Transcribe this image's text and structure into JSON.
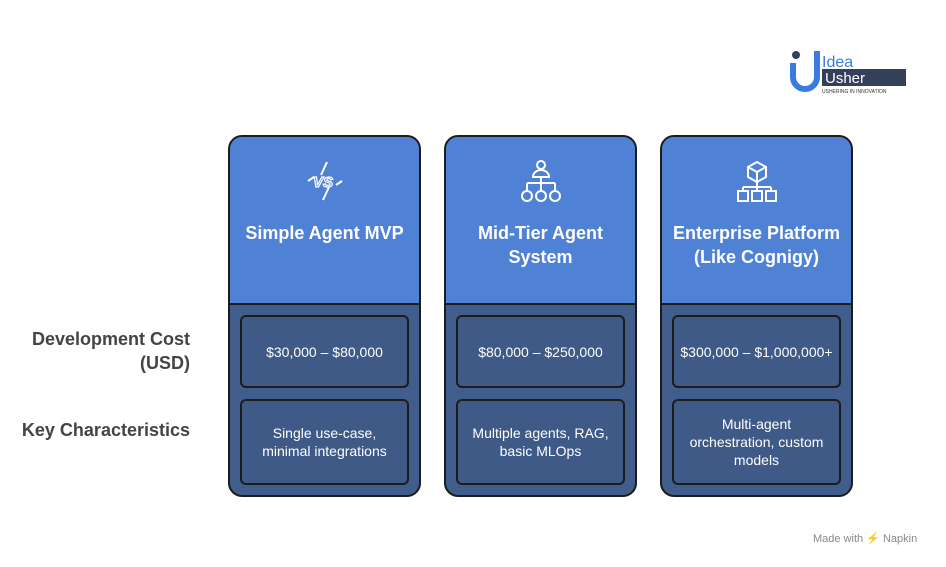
{
  "logo": {
    "line1": "Idea",
    "line2": "Usher",
    "tagline": "USHERING IN INNOVATION"
  },
  "row_labels": [
    "Development Cost (USD)",
    "Key Characteristics"
  ],
  "columns": [
    {
      "title": "Simple Agent MVP",
      "icon": "vs-icon",
      "cost": "$30,000 – $80,000",
      "characteristics": "Single use-case, minimal integrations"
    },
    {
      "title": "Mid-Tier Agent System",
      "icon": "org-hierarchy-icon",
      "cost": "$80,000 – $250,000",
      "characteristics": "Multiple agents, RAG, basic MLOps"
    },
    {
      "title": "Enterprise Platform (Like Cognigy)",
      "icon": "cube-network-icon",
      "cost": "$300,000 – $1,000,000+",
      "characteristics": "Multi-agent orchestration, custom models"
    }
  ],
  "footer": "Made with ⚡ Napkin",
  "colors": {
    "header": "#4f81d4",
    "body": "#405d8c",
    "cell": "#3f5a86",
    "border": "#1c1c1c"
  }
}
